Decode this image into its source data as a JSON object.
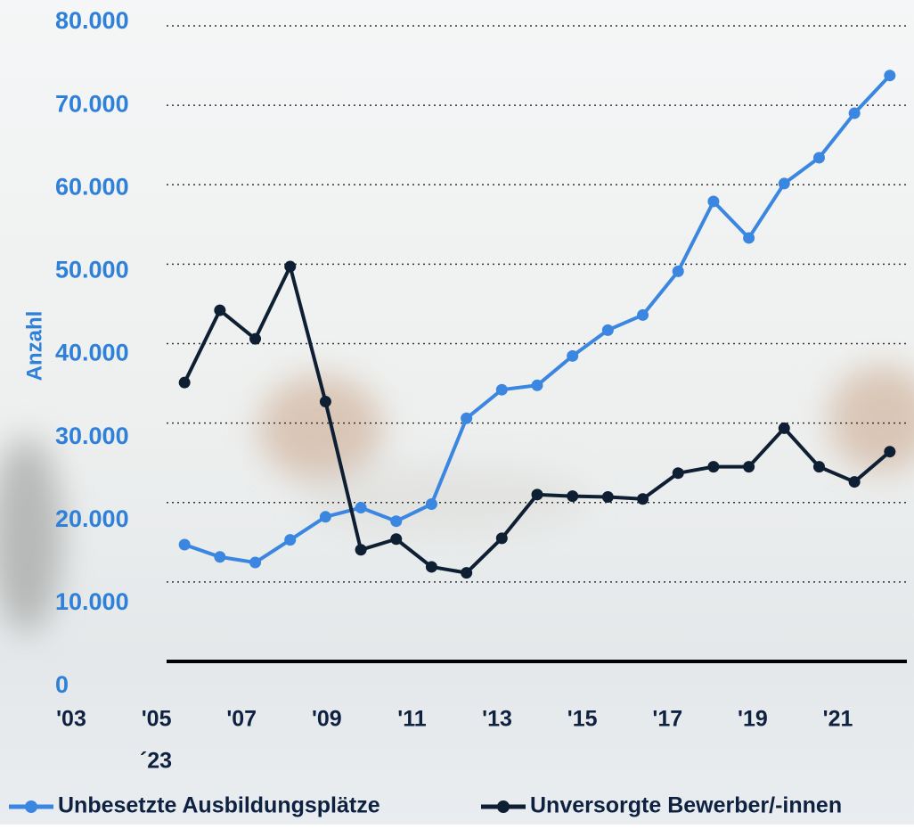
{
  "chart_data": {
    "type": "line",
    "y_label": "Anzahl",
    "x": [
      2005.66,
      2006.49,
      2007.32,
      2008.14,
      2008.97,
      2009.8,
      2010.63,
      2011.46,
      2012.28,
      2013.11,
      2013.94,
      2014.77,
      2015.6,
      2016.42,
      2017.25,
      2018.08,
      2018.91,
      2019.74,
      2020.56,
      2021.39,
      2022.22
    ],
    "series": [
      {
        "name": "Unbesetzte Ausbildungsplätze",
        "color": "#3a86e0",
        "values": [
          14700,
          13150,
          12450,
          15300,
          18200,
          19350,
          17650,
          19800,
          30600,
          34200,
          34750,
          38450,
          41700,
          43600,
          49100,
          57900,
          53300,
          60150,
          63400,
          69000,
          73750
        ]
      },
      {
        "name": "Unversorgte Bewerber/-innen",
        "color": "#0f1f33",
        "values": [
          35100,
          44200,
          40600,
          49700,
          32700,
          14050,
          15400,
          11900,
          11150,
          15500,
          21000,
          20800,
          20700,
          20450,
          23700,
          24500,
          24500,
          29350,
          24500,
          22600,
          26400
        ]
      }
    ],
    "xlim": [
      2003,
      2022.6
    ],
    "xticks": [
      {
        "value": 2003,
        "label": "'03"
      },
      {
        "value": 2005,
        "label": "'05"
      },
      {
        "value": 2007,
        "label": "'07"
      },
      {
        "value": 2009,
        "label": "'09"
      },
      {
        "value": 2011,
        "label": "'11"
      },
      {
        "value": 2013,
        "label": "'13"
      },
      {
        "value": 2015,
        "label": "'15"
      },
      {
        "value": 2017,
        "label": "'17"
      },
      {
        "value": 2019,
        "label": "'19"
      },
      {
        "value": 2021,
        "label": "'21"
      }
    ],
    "annotation": "´23",
    "ylim": [
      0,
      80000
    ],
    "yticks": [
      0,
      {
        "value": 10000,
        "label": "10.000"
      },
      {
        "value": 20000,
        "label": "20.000"
      },
      {
        "value": 30000,
        "label": "30.000"
      },
      {
        "value": 40000,
        "label": "40.000"
      },
      {
        "value": 50000,
        "label": "50.000"
      },
      {
        "value": 60000,
        "label": "60.000"
      },
      {
        "value": 70000,
        "label": "70.000"
      },
      {
        "value": 80000,
        "label": "80.000"
      }
    ],
    "grid": true,
    "legend": "bottom"
  }
}
